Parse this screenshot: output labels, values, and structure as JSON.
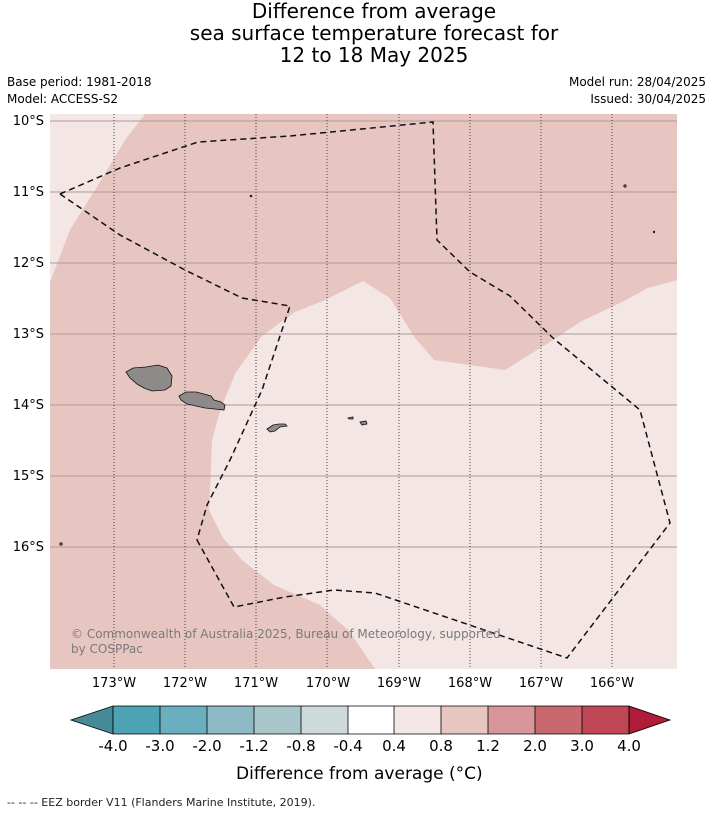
{
  "title": {
    "line1": "Difference from average",
    "line2": "sea surface temperature forecast for",
    "line3": "12 to 18 May 2025"
  },
  "info": {
    "base_period": "Base period: 1981-2018",
    "model": "Model: ACCESS-S2",
    "model_run": "Model run: 28/04/2025",
    "issued": "Issued: 30/04/2025"
  },
  "map": {
    "lat_labels": [
      "10°S",
      "11°S",
      "12°S",
      "13°S",
      "14°S",
      "15°S",
      "16°S"
    ],
    "lon_labels": [
      "173°W",
      "172°W",
      "171°W",
      "170°W",
      "169°W",
      "168°W",
      "167°W",
      "166°W"
    ],
    "copyright_line1": "© Commonwealth of Australia 2025, Bureau of Meteorology, supported",
    "copyright_line2": "by COSPPac",
    "colors": {
      "band_0_4_to_0_8": "#f4e6e4",
      "band_0_8_to_1_2": "#e7c6c1",
      "land": "#8e8a8a",
      "grid_lat": "#b09a98",
      "grid_lon": "#444444"
    }
  },
  "colorbar": {
    "title": "Difference from average (°C)",
    "ticks": [
      "-4.0",
      "-3.0",
      "-2.0",
      "-1.2",
      "-0.8",
      "-0.4",
      "0.4",
      "0.8",
      "1.2",
      "2.0",
      "3.0",
      "4.0"
    ],
    "colors": [
      "#468a97",
      "#4ba3b4",
      "#6aafbf",
      "#8dbac5",
      "#a9c7cb",
      "#ced9da",
      "#ffffff",
      "#f4e6e4",
      "#e7c6c1",
      "#d8959a",
      "#c9686f",
      "#bf4654",
      "#b01c38"
    ]
  },
  "footer": {
    "legend_text": "-- -- -- EEZ border V11 (Flanders Marine Institute, 2019)."
  }
}
